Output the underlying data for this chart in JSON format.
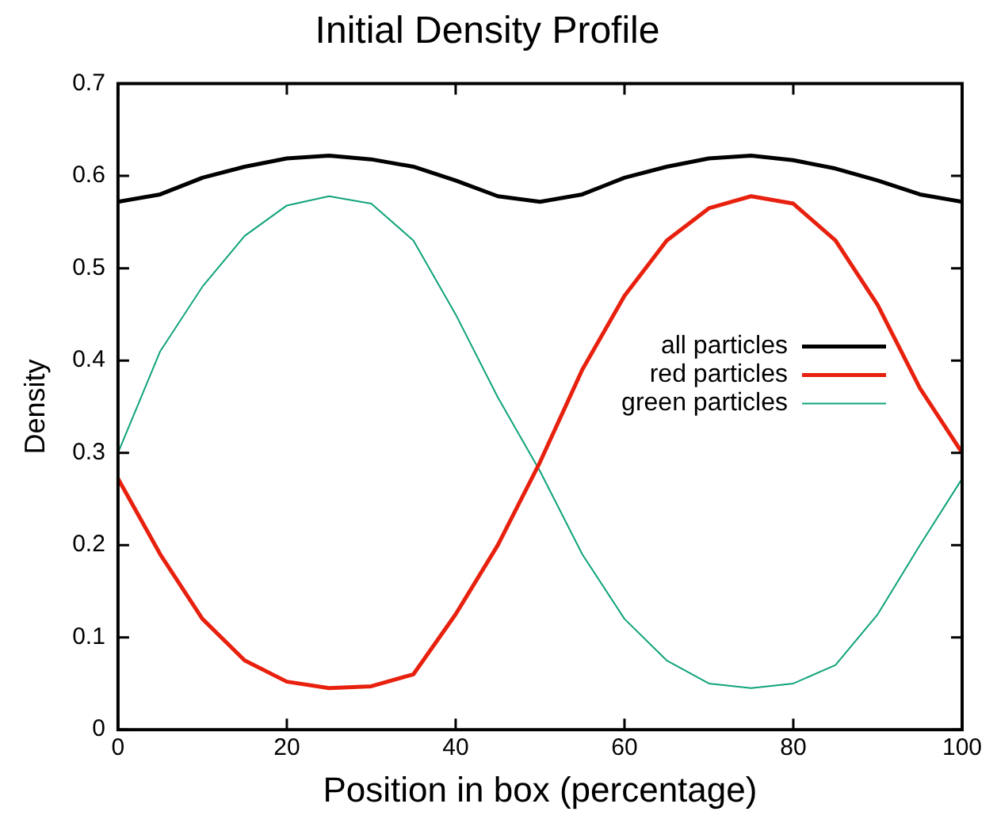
{
  "chart_data": {
    "type": "line",
    "title": "Initial Density Profile",
    "xlabel": "Position in box (percentage)",
    "ylabel": "Density",
    "x": [
      0,
      5,
      10,
      15,
      20,
      25,
      30,
      35,
      40,
      45,
      50,
      55,
      60,
      65,
      70,
      75,
      80,
      85,
      90,
      95,
      100
    ],
    "xlim": [
      0,
      100
    ],
    "xticks": [
      0,
      20,
      40,
      60,
      80,
      100
    ],
    "ylim": [
      0,
      0.7
    ],
    "yticks": [
      0,
      0.1,
      0.2,
      0.3,
      0.4,
      0.5,
      0.6,
      0.7
    ],
    "grid": false,
    "legend": "right",
    "marker": "none",
    "line_style": "solid",
    "series": [
      {
        "name": "all particles",
        "color": "#000000",
        "values": [
          0.572,
          0.58,
          0.598,
          0.61,
          0.619,
          0.622,
          0.618,
          0.61,
          0.595,
          0.578,
          0.572,
          0.58,
          0.598,
          0.61,
          0.619,
          0.622,
          0.617,
          0.608,
          0.595,
          0.58,
          0.572
        ]
      },
      {
        "name": "red particles",
        "color": "#e8200e",
        "values": [
          0.272,
          0.19,
          0.12,
          0.075,
          0.052,
          0.045,
          0.047,
          0.06,
          0.125,
          0.2,
          0.29,
          0.39,
          0.47,
          0.53,
          0.565,
          0.578,
          0.57,
          0.53,
          0.46,
          0.37,
          0.3
        ]
      },
      {
        "name": "green particles",
        "color": "#0fa37a",
        "values": [
          0.3,
          0.41,
          0.48,
          0.535,
          0.568,
          0.578,
          0.57,
          0.53,
          0.45,
          0.36,
          0.28,
          0.19,
          0.12,
          0.075,
          0.05,
          0.045,
          0.05,
          0.07,
          0.125,
          0.2,
          0.272
        ]
      }
    ]
  }
}
